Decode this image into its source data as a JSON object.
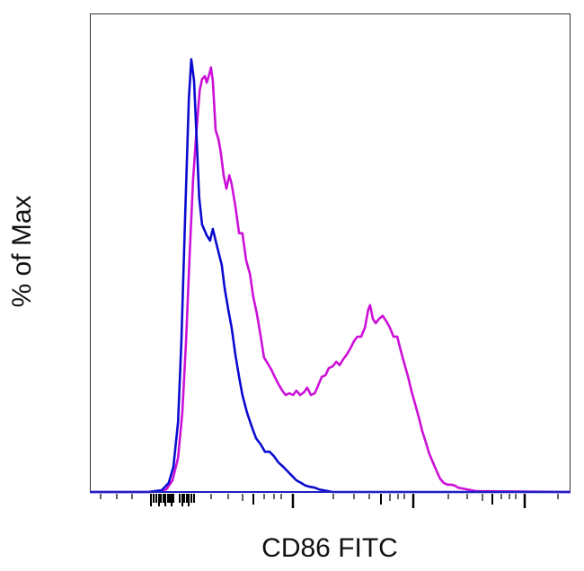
{
  "chart_data": {
    "type": "line",
    "title": "",
    "xlabel": "CD86 FITC",
    "ylabel": "% of Max",
    "x_scale": "biexponential (unlabeled)",
    "xlim": [
      0,
      1024
    ],
    "ylim": [
      0,
      110
    ],
    "grid": false,
    "legend": "none",
    "series": [
      {
        "color": "#0a0ad0",
        "x": [
          0,
          124,
          153,
          168,
          178,
          188,
          195,
          203,
          211,
          216,
          222,
          228,
          233,
          239,
          249,
          256,
          262,
          268,
          276,
          281,
          287,
          295,
          302,
          310,
          318,
          325,
          335,
          345,
          354,
          364,
          373,
          383,
          392,
          402,
          412,
          421,
          431,
          440,
          450,
          459,
          469,
          479,
          488,
          507,
          517,
          1024
        ],
        "y": [
          0,
          0,
          0.4,
          2.1,
          5.8,
          16.2,
          34.9,
          63.9,
          90.9,
          100,
          95.0,
          80.5,
          68.0,
          61.8,
          59.3,
          58.1,
          60.8,
          58.1,
          54.6,
          52.5,
          47.3,
          42.1,
          38.0,
          31.7,
          26.6,
          22.4,
          18.3,
          15.1,
          12.4,
          11.0,
          9.3,
          9.3,
          8.3,
          6.8,
          5.8,
          4.8,
          3.7,
          2.7,
          2.1,
          1.5,
          1.2,
          1.0,
          0.6,
          0.2,
          0,
          0
        ]
      },
      {
        "color": "#cc10d8",
        "x": [
          0,
          134,
          163,
          176,
          188,
          197,
          205,
          212,
          220,
          228,
          234,
          239,
          245,
          249,
          255,
          258,
          262,
          268,
          274,
          279,
          285,
          291,
          297,
          302,
          310,
          318,
          325,
          333,
          341,
          348,
          356,
          364,
          371,
          379,
          387,
          394,
          402,
          410,
          417,
          425,
          433,
          440,
          448,
          456,
          463,
          471,
          479,
          486,
          494,
          502,
          509,
          517,
          525,
          532,
          540,
          547,
          555,
          563,
          570,
          578,
          586,
          593,
          597,
          603,
          609,
          616,
          624,
          632,
          639,
          647,
          655,
          662,
          670,
          678,
          685,
          693,
          701,
          708,
          716,
          723,
          731,
          739,
          746,
          754,
          762,
          769,
          777,
          785,
          794,
          804,
          823,
          1024
        ],
        "y": [
          0,
          0,
          0.6,
          2.7,
          7.9,
          18.3,
          34.9,
          53.5,
          72.2,
          84.6,
          92.9,
          95.4,
          96.1,
          94.6,
          96.7,
          98.1,
          95.0,
          83.6,
          81.5,
          78.4,
          73.2,
          70.1,
          73.2,
          71.2,
          66.0,
          59.8,
          59.8,
          53.5,
          50.4,
          45.2,
          41.1,
          35.9,
          31.1,
          29.7,
          28.2,
          26.6,
          24.9,
          23.4,
          22.4,
          22.8,
          22.4,
          23.4,
          22.4,
          23.0,
          24.1,
          22.4,
          22.8,
          24.5,
          26.6,
          27.0,
          28.6,
          29.0,
          30.1,
          29.3,
          30.7,
          31.7,
          33.2,
          34.9,
          35.9,
          35.9,
          38.0,
          42.1,
          43.2,
          40.0,
          39.0,
          40.0,
          40.7,
          39.4,
          38.0,
          35.9,
          35.9,
          32.8,
          29.7,
          26.6,
          23.4,
          20.3,
          17.2,
          14.1,
          11.4,
          8.9,
          6.8,
          4.8,
          3.1,
          2.1,
          1.7,
          1.7,
          1.5,
          1.0,
          0.8,
          0.6,
          0.2,
          0
        ]
      }
    ]
  }
}
